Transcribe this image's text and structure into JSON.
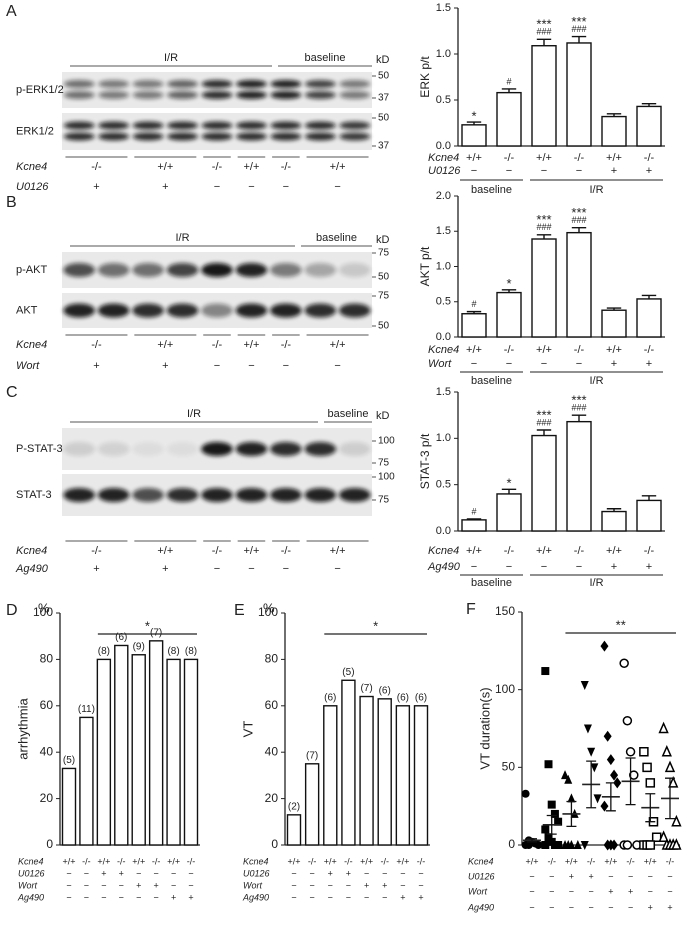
{
  "blots": [
    {
      "letter": "A",
      "groups": [
        "I/R",
        "baseline"
      ],
      "unit": "kD",
      "rows": [
        {
          "label": "p-ERK1/2",
          "markers": [
            50,
            37
          ]
        },
        {
          "label": "ERK1/2",
          "markers": [
            50,
            37
          ]
        }
      ],
      "table": [
        {
          "label": "Kcne4",
          "values": [
            "-/-",
            "+/+",
            "-/-",
            "+/+",
            "-/-",
            "+/+"
          ]
        },
        {
          "label": "U0126",
          "values": [
            "+",
            "+",
            "−",
            "−",
            "−",
            "−"
          ]
        }
      ]
    },
    {
      "letter": "B",
      "groups": [
        "I/R",
        "baseline"
      ],
      "unit": "kD",
      "rows": [
        {
          "label": "p-AKT",
          "markers": [
            75,
            50
          ]
        },
        {
          "label": "AKT",
          "markers": [
            75,
            50
          ]
        }
      ],
      "table": [
        {
          "label": "Kcne4",
          "values": [
            "-/-",
            "+/+",
            "-/-",
            "+/+",
            "-/-",
            "+/+"
          ]
        },
        {
          "label": "Wort",
          "values": [
            "+",
            "+",
            "−",
            "−",
            "−",
            "−"
          ]
        }
      ]
    },
    {
      "letter": "C",
      "groups": [
        "I/R",
        "baseline"
      ],
      "unit": "kD",
      "rows": [
        {
          "label": "P-STAT-3",
          "markers": [
            100,
            75
          ]
        },
        {
          "label": "STAT-3",
          "markers": [
            100,
            75
          ]
        }
      ],
      "table": [
        {
          "label": "Kcne4",
          "values": [
            "-/-",
            "+/+",
            "-/-",
            "+/+",
            "-/-",
            "+/+"
          ]
        },
        {
          "label": "Ag490",
          "values": [
            "+",
            "+",
            "−",
            "−",
            "−",
            "−"
          ]
        }
      ]
    }
  ],
  "chart_data": [
    {
      "type": "bar",
      "y_label": "ERK p/t",
      "ylim": [
        0,
        1.5
      ],
      "yticks": [
        {
          "value": 0,
          "label": "0.0"
        },
        0.5,
        {
          "value": 1,
          "label": "1.0"
        },
        1.5
      ],
      "values": [
        0.23,
        0.58,
        1.09,
        1.12,
        0.32,
        0.43
      ],
      "errors": [
        0.03,
        0.04,
        0.07,
        0.07,
        0.03,
        0.03
      ],
      "stars": [
        "*",
        null,
        "***",
        "***",
        null,
        null
      ],
      "hashes": [
        null,
        "#",
        "###",
        "###",
        null,
        null
      ],
      "table": [
        {
          "label": "Kcne4",
          "values": [
            "+/+",
            "-/-",
            "+/+",
            "-/-",
            "+/+",
            "-/-"
          ]
        },
        {
          "label": "U0126",
          "values": [
            "−",
            "−",
            "−",
            "−",
            "+",
            "+"
          ]
        }
      ],
      "group_labels": [
        "baseline",
        "I/R"
      ],
      "color": "#ffffff"
    },
    {
      "type": "bar",
      "y_label": "AKT p/t",
      "ylim": [
        0,
        2
      ],
      "yticks": [
        {
          "value": 0,
          "label": "0.0"
        },
        0.5,
        {
          "value": 1,
          "label": "1.0"
        },
        1.5,
        {
          "value": 2,
          "label": "2.0"
        }
      ],
      "values": [
        0.33,
        0.63,
        1.39,
        1.48,
        0.38,
        0.54
      ],
      "errors": [
        0.03,
        0.04,
        0.06,
        0.07,
        0.03,
        0.05
      ],
      "stars": [
        null,
        "*",
        "***",
        "***",
        null,
        null
      ],
      "hashes": [
        "#",
        null,
        "###",
        "###",
        null,
        null
      ],
      "table": [
        {
          "label": "Kcne4",
          "values": [
            "+/+",
            "-/-",
            "+/+",
            "-/-",
            "+/+",
            "-/-"
          ]
        },
        {
          "label": "Wort",
          "values": [
            "−",
            "−",
            "−",
            "−",
            "+",
            "+"
          ]
        }
      ],
      "group_labels": [
        "baseline",
        "I/R"
      ],
      "color": "#ffffff"
    },
    {
      "type": "bar",
      "y_label": "STAT-3 p/t",
      "ylim": [
        0,
        1.5
      ],
      "yticks": [
        {
          "value": 0,
          "label": "0.0"
        },
        0.5,
        {
          "value": 1,
          "label": "1.0"
        },
        1.5
      ],
      "values": [
        0.12,
        0.4,
        1.03,
        1.18,
        0.21,
        0.33
      ],
      "errors": [
        0.01,
        0.05,
        0.06,
        0.07,
        0.03,
        0.05
      ],
      "stars": [
        null,
        "*",
        "***",
        "***",
        null,
        null
      ],
      "hashes": [
        "#",
        null,
        "###",
        "###",
        null,
        null
      ],
      "table": [
        {
          "label": "Kcne4",
          "values": [
            "+/+",
            "-/-",
            "+/+",
            "-/-",
            "+/+",
            "-/-"
          ]
        },
        {
          "label": "Ag490",
          "values": [
            "−",
            "−",
            "−",
            "−",
            "+",
            "+"
          ]
        }
      ],
      "group_labels": [
        "baseline",
        "I/R"
      ],
      "color": "#ffffff"
    },
    {
      "type": "bar",
      "letter": "D",
      "y_unit": "%",
      "y_label": "arrhythmia",
      "ylim": [
        0,
        100
      ],
      "yticks": [
        0,
        20,
        40,
        60,
        80,
        100
      ],
      "values": [
        33,
        55,
        80,
        86,
        82,
        88,
        80,
        80
      ],
      "n_labels": [
        "(5)",
        "(11)",
        "(8)",
        "(6)",
        "(9)",
        "(7)",
        "(8)",
        "(8)"
      ],
      "significance": "*",
      "table": [
        {
          "label": "Kcne4",
          "values": [
            "+/+",
            "-/-",
            "+/+",
            "-/-",
            "+/+",
            "-/-",
            "+/+",
            "-/-"
          ]
        },
        {
          "label": "U0126",
          "values": [
            "−",
            "−",
            "+",
            "+",
            "−",
            "−",
            "−",
            "−"
          ]
        },
        {
          "label": "Wort",
          "values": [
            "−",
            "−",
            "−",
            "−",
            "+",
            "+",
            "−",
            "−"
          ]
        },
        {
          "label": "Ag490",
          "values": [
            "−",
            "−",
            "−",
            "−",
            "−",
            "−",
            "+",
            "+"
          ]
        }
      ],
      "color": "#ffffff"
    },
    {
      "type": "bar",
      "letter": "E",
      "y_unit": "%",
      "y_label": "VT",
      "ylim": [
        0,
        100
      ],
      "yticks": [
        0,
        20,
        40,
        60,
        80,
        100
      ],
      "values": [
        13,
        35,
        60,
        71,
        64,
        63,
        60,
        60
      ],
      "n_labels": [
        "(2)",
        "(7)",
        "(6)",
        "(5)",
        "(7)",
        "(6)",
        "(6)",
        "(6)"
      ],
      "significance": "*",
      "table": [
        {
          "label": "Kcne4",
          "values": [
            "+/+",
            "-/-",
            "+/+",
            "-/-",
            "+/+",
            "-/-",
            "+/+",
            "-/-"
          ]
        },
        {
          "label": "U0126",
          "values": [
            "−",
            "−",
            "+",
            "+",
            "−",
            "−",
            "−",
            "−"
          ]
        },
        {
          "label": "Wort",
          "values": [
            "−",
            "−",
            "−",
            "−",
            "+",
            "+",
            "−",
            "−"
          ]
        },
        {
          "label": "Ag490",
          "values": [
            "−",
            "−",
            "−",
            "−",
            "−",
            "−",
            "+",
            "+"
          ]
        }
      ],
      "color": "#ffffff"
    },
    {
      "type": "dot",
      "letter": "F",
      "y_label": "VT duration(s)",
      "ylim": [
        0,
        150
      ],
      "yticks": [
        0,
        50,
        100,
        150
      ],
      "significance": "**",
      "points": [
        [
          33,
          3,
          2,
          1,
          0,
          0,
          0
        ],
        [
          112,
          52,
          26,
          20,
          15,
          10,
          5,
          2,
          0,
          0,
          0
        ],
        [
          45,
          42,
          30,
          20,
          0,
          0,
          0,
          0
        ],
        [
          103,
          75,
          60,
          50,
          30,
          0
        ],
        [
          128,
          70,
          55,
          45,
          40,
          25,
          0,
          0,
          0
        ],
        [
          117,
          80,
          60,
          45,
          0,
          0,
          0
        ],
        [
          60,
          50,
          40,
          15,
          5,
          0,
          0,
          0
        ],
        [
          75,
          60,
          50,
          40,
          15,
          5,
          0,
          0,
          0,
          0
        ]
      ],
      "means": [
        3,
        13,
        20,
        39,
        31,
        41,
        24,
        30
      ],
      "sems": [
        1,
        6,
        8,
        15,
        9,
        15,
        9,
        13
      ],
      "table": [
        {
          "label": "Kcne4",
          "values": [
            "+/+",
            "-/-",
            "+/+",
            "-/-",
            "+/+",
            "-/-",
            "+/+",
            "-/-"
          ]
        },
        {
          "label": "U0126",
          "values": [
            "−",
            "−",
            "+",
            "+",
            "−",
            "−",
            "−",
            "−"
          ]
        },
        {
          "label": "Wort",
          "values": [
            "−",
            "−",
            "−",
            "−",
            "+",
            "+",
            "−",
            "−"
          ]
        },
        {
          "label": "Ag490",
          "values": [
            "−",
            "−",
            "−",
            "−",
            "−",
            "−",
            "+",
            "+"
          ]
        }
      ],
      "color": "#000000"
    }
  ]
}
